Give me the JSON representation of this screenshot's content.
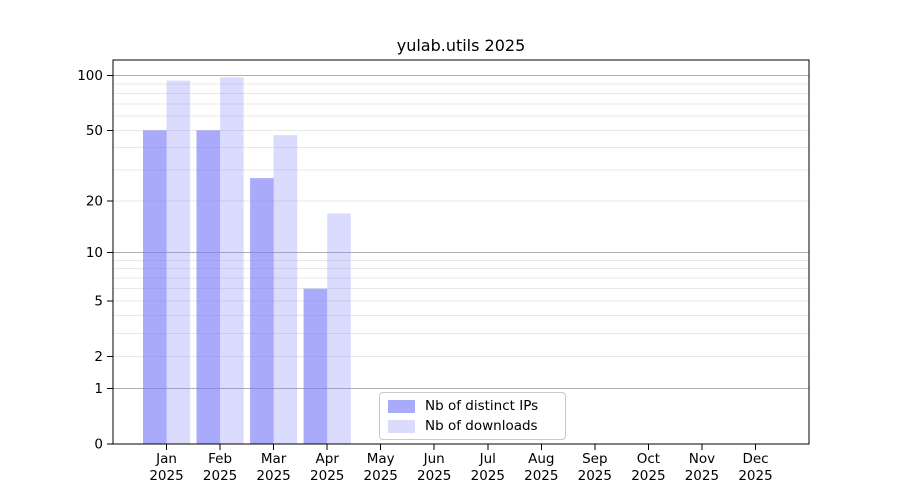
{
  "chart_data": {
    "type": "bar",
    "title": "yulab.utils 2025",
    "categories": [
      "Jan 2025",
      "Feb 2025",
      "Mar 2025",
      "Apr 2025",
      "May 2025",
      "Jun 2025",
      "Jul 2025",
      "Aug 2025",
      "Sep 2025",
      "Oct 2025",
      "Nov 2025",
      "Dec 2025"
    ],
    "series": [
      {
        "name": "Nb of distinct IPs",
        "color": "rgba(125,125,248,0.65)",
        "values": [
          50,
          50,
          27,
          6,
          null,
          null,
          null,
          null,
          null,
          null,
          null,
          null
        ]
      },
      {
        "name": "Nb of downloads",
        "color": "rgba(125,125,248,0.28)",
        "values": [
          94,
          98,
          47,
          17,
          null,
          null,
          null,
          null,
          null,
          null,
          null,
          null
        ]
      }
    ],
    "xlabel": "",
    "ylabel": "",
    "yscale": "log1p",
    "ylim": [
      0,
      122
    ],
    "yticks": [
      0,
      1,
      2,
      5,
      10,
      20,
      50,
      100
    ],
    "minor_gridlines": [
      3,
      4,
      6,
      7,
      8,
      9,
      30,
      40,
      60,
      70,
      80,
      90
    ],
    "decade_gridlines": [
      1,
      10,
      100
    ],
    "grid": true,
    "legend_position": "lower center"
  },
  "style": {
    "background": "#ffffff",
    "axis": "#000000",
    "major_grid": "#b0b0b0",
    "minor_grid": "#e8e8e8",
    "legend_border": "#c9c9c9",
    "text": "#000000"
  }
}
